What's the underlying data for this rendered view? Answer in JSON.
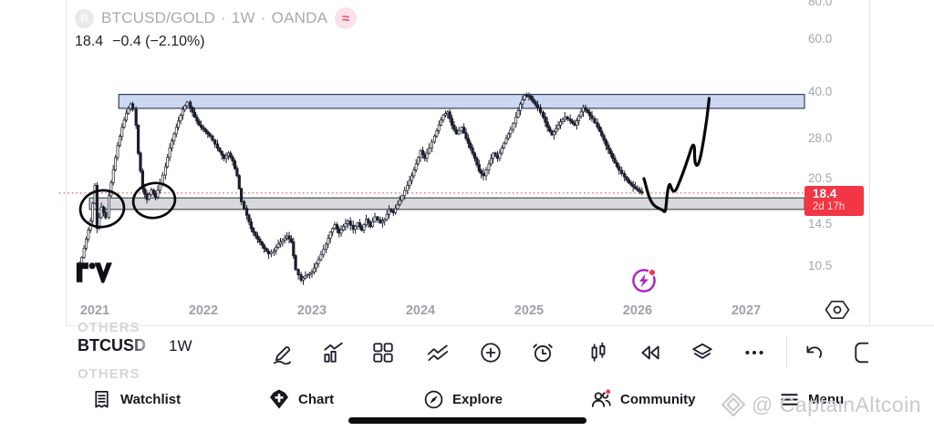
{
  "header": {
    "symbol_avatar": "B",
    "symbol": "BTCUSD/GOLD",
    "sep": "·",
    "interval": "1W",
    "exchange": "OANDA",
    "delay_badge": "≈",
    "last_price": "18.4",
    "change": "−0.4 (−2.10%)"
  },
  "chart_data": {
    "type": "bar",
    "title": "BTCUSD/GOLD · 1W · OANDA",
    "scale": "log",
    "x_axis_years": [
      "2021",
      "2022",
      "2023",
      "2024",
      "2025",
      "2026",
      "2027"
    ],
    "y_ticks": [
      "80.0",
      "60.0",
      "40.0",
      "28.0",
      "20.5",
      "14.5",
      "10.5"
    ],
    "last_price": 18.4,
    "countdown": "2d 17h",
    "price_line": {
      "value": 18.4,
      "color": "#ef5661",
      "style": "dotted"
    },
    "zones": [
      {
        "name": "resistance-zone",
        "price_from": 35.3,
        "price_to": 39.3,
        "year_from": 2021.22,
        "color": "#ccd7f2",
        "border": "#39405a"
      },
      {
        "name": "support-zone",
        "price_from": 16.2,
        "price_to": 17.7,
        "year_from": 2020.95,
        "color": "#d8d9db",
        "border": "#4b4f5a"
      }
    ],
    "series_weekly_close": [
      [
        2020.84,
        9.8
      ],
      [
        2020.88,
        11.2
      ],
      [
        2020.92,
        12.9
      ],
      [
        2020.96,
        14.8
      ],
      [
        2021.0,
        19.5
      ],
      [
        2021.02,
        14.0
      ],
      [
        2021.06,
        16.5
      ],
      [
        2021.1,
        15.2
      ],
      [
        2021.13,
        18.0
      ],
      [
        2021.17,
        22.0
      ],
      [
        2021.21,
        26.5
      ],
      [
        2021.25,
        30.5
      ],
      [
        2021.29,
        34.0
      ],
      [
        2021.33,
        36.5
      ],
      [
        2021.35,
        35.0
      ],
      [
        2021.38,
        31.0
      ],
      [
        2021.4,
        25.0
      ],
      [
        2021.44,
        19.0
      ],
      [
        2021.48,
        17.5
      ],
      [
        2021.52,
        18.8
      ],
      [
        2021.56,
        17.8
      ],
      [
        2021.6,
        19.8
      ],
      [
        2021.65,
        22.5
      ],
      [
        2021.69,
        26.0
      ],
      [
        2021.73,
        29.0
      ],
      [
        2021.77,
        32.0
      ],
      [
        2021.81,
        35.0
      ],
      [
        2021.85,
        37.0
      ],
      [
        2021.88,
        35.5
      ],
      [
        2021.92,
        33.0
      ],
      [
        2021.96,
        31.0
      ],
      [
        2022.0,
        30.0
      ],
      [
        2022.06,
        28.5
      ],
      [
        2022.13,
        26.0
      ],
      [
        2022.19,
        24.0
      ],
      [
        2022.23,
        25.0
      ],
      [
        2022.27,
        23.5
      ],
      [
        2022.31,
        21.0
      ],
      [
        2022.35,
        17.2
      ],
      [
        2022.4,
        15.5
      ],
      [
        2022.44,
        14.0
      ],
      [
        2022.48,
        13.2
      ],
      [
        2022.52,
        12.6
      ],
      [
        2022.56,
        12.0
      ],
      [
        2022.6,
        11.5
      ],
      [
        2022.65,
        11.8
      ],
      [
        2022.69,
        12.4
      ],
      [
        2022.73,
        12.8
      ],
      [
        2022.77,
        13.2
      ],
      [
        2022.81,
        12.6
      ],
      [
        2022.85,
        10.2
      ],
      [
        2022.9,
        9.4
      ],
      [
        2022.94,
        9.7
      ],
      [
        2023.0,
        10.0
      ],
      [
        2023.06,
        11.0
      ],
      [
        2023.13,
        12.4
      ],
      [
        2023.17,
        13.6
      ],
      [
        2023.21,
        14.4
      ],
      [
        2023.25,
        13.5
      ],
      [
        2023.29,
        14.2
      ],
      [
        2023.33,
        14.8
      ],
      [
        2023.38,
        13.9
      ],
      [
        2023.42,
        14.6
      ],
      [
        2023.46,
        13.8
      ],
      [
        2023.5,
        15.0
      ],
      [
        2023.54,
        14.2
      ],
      [
        2023.58,
        15.3
      ],
      [
        2023.63,
        14.6
      ],
      [
        2023.67,
        15.0
      ],
      [
        2023.71,
        16.2
      ],
      [
        2023.75,
        15.8
      ],
      [
        2023.79,
        16.8
      ],
      [
        2023.83,
        18.0
      ],
      [
        2023.88,
        19.5
      ],
      [
        2023.92,
        21.0
      ],
      [
        2023.96,
        23.0
      ],
      [
        2024.0,
        25.5
      ],
      [
        2024.04,
        24.0
      ],
      [
        2024.08,
        26.0
      ],
      [
        2024.13,
        28.5
      ],
      [
        2024.17,
        31.0
      ],
      [
        2024.21,
        33.5
      ],
      [
        2024.25,
        34.3
      ],
      [
        2024.29,
        31.0
      ],
      [
        2024.33,
        29.0
      ],
      [
        2024.38,
        30.5
      ],
      [
        2024.42,
        28.0
      ],
      [
        2024.46,
        26.0
      ],
      [
        2024.5,
        24.0
      ],
      [
        2024.54,
        21.8
      ],
      [
        2024.58,
        21.0
      ],
      [
        2024.63,
        23.0
      ],
      [
        2024.67,
        25.0
      ],
      [
        2024.71,
        24.0
      ],
      [
        2024.75,
        26.0
      ],
      [
        2024.79,
        28.0
      ],
      [
        2024.83,
        30.0
      ],
      [
        2024.88,
        33.0
      ],
      [
        2024.92,
        36.5
      ],
      [
        2024.96,
        39.0
      ],
      [
        2025.0,
        38.8
      ],
      [
        2025.04,
        37.0
      ],
      [
        2025.08,
        35.5
      ],
      [
        2025.13,
        33.0
      ],
      [
        2025.17,
        30.5
      ],
      [
        2025.21,
        28.8
      ],
      [
        2025.25,
        30.2
      ],
      [
        2025.29,
        31.8
      ],
      [
        2025.33,
        33.0
      ],
      [
        2025.38,
        32.0
      ],
      [
        2025.42,
        31.0
      ],
      [
        2025.46,
        33.2
      ],
      [
        2025.5,
        35.5
      ],
      [
        2025.54,
        34.2
      ],
      [
        2025.58,
        32.6
      ],
      [
        2025.63,
        30.6
      ],
      [
        2025.67,
        28.6
      ],
      [
        2025.71,
        26.6
      ],
      [
        2025.75,
        24.9
      ],
      [
        2025.79,
        23.2
      ],
      [
        2025.83,
        21.9
      ],
      [
        2025.88,
        20.8
      ],
      [
        2025.92,
        19.9
      ],
      [
        2025.96,
        19.3
      ],
      [
        2026.0,
        18.8
      ],
      [
        2026.04,
        18.4
      ]
    ],
    "annotations": [
      {
        "name": "circle-annotation-early-2021"
      },
      {
        "name": "circle-annotation-mid-2021-dip"
      },
      {
        "name": "projection-drawing-up-to-resistance"
      }
    ]
  },
  "toolbar": {
    "symbol": "BTCUSD",
    "interval": "1W",
    "tools": [
      "draw",
      "indicators",
      "layouts",
      "compare",
      "add",
      "alert",
      "bar-style",
      "replay",
      "object-tree",
      "more",
      "undo",
      "frame"
    ]
  },
  "nav": {
    "items": [
      {
        "id": "watchlist",
        "label": "Watchlist"
      },
      {
        "id": "chart",
        "label": "Chart",
        "active": true
      },
      {
        "id": "explore",
        "label": "Explore"
      },
      {
        "id": "community",
        "label": "Community",
        "badge": true
      },
      {
        "id": "menu",
        "label": "Menu"
      }
    ]
  },
  "watermark": {
    "text": "@ CaptainAltcoin"
  },
  "background_rows": [
    "OTHERS",
    "OTHERS"
  ],
  "colors": {
    "accent_red": "#f23645",
    "zone_blue": "#ccd7f2",
    "zone_gray": "#d8d9db",
    "axis_text": "#a4a7b0",
    "ink": "#000000",
    "purple": "#ab29c4"
  }
}
